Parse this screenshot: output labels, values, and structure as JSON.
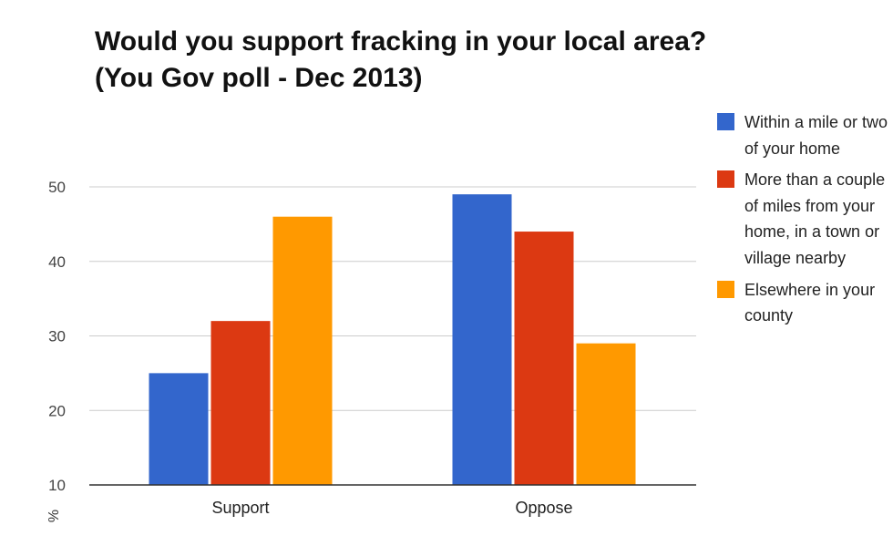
{
  "chart_data": {
    "type": "bar",
    "title": "Would you support fracking in your local area?",
    "subtitle": "(You Gov poll - Dec 2013)",
    "ylabel": "%",
    "xlabel": "",
    "categories": [
      "Support",
      "Oppose"
    ],
    "series": [
      {
        "name": "Within a mile or two of your home",
        "values": [
          25,
          49
        ],
        "color": "#3366cc"
      },
      {
        "name": "More than a couple of miles from your home, in a town or village nearby",
        "values": [
          32,
          44
        ],
        "color": "#dc3912"
      },
      {
        "name": "Elsewhere in your county",
        "values": [
          46,
          29
        ],
        "color": "#ff9900"
      }
    ],
    "ylim": [
      10,
      50
    ],
    "yticks": [
      "10",
      "20",
      "30",
      "40",
      "50"
    ],
    "grid": true,
    "legend": "right"
  }
}
